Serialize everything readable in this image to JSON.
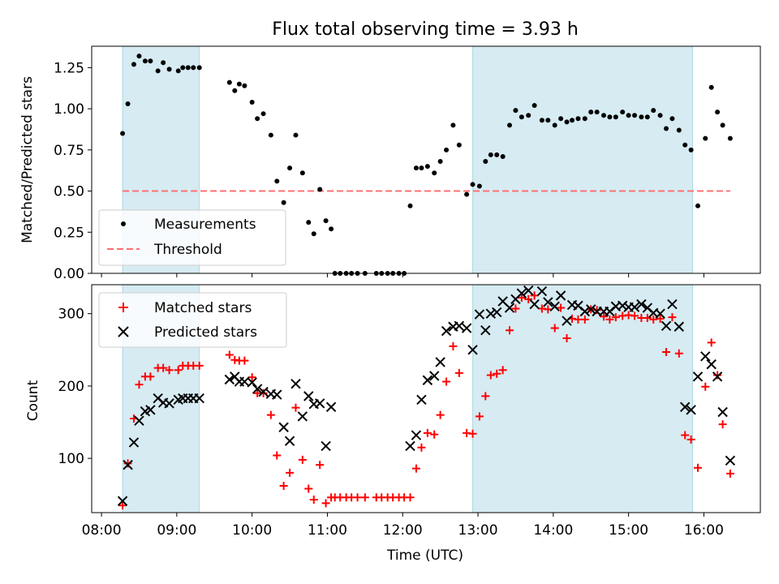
{
  "chart_data": {
    "type": "scatter",
    "title": "Flux total observing time = 3.93 h",
    "xlabel": "Time (UTC)",
    "x_units": "hours UTC",
    "xlim": [
      7.87,
      16.75
    ],
    "x_ticks": [
      8,
      9,
      10,
      11,
      12,
      13,
      14,
      15,
      16
    ],
    "x_tick_labels": [
      "08:00",
      "09:00",
      "10:00",
      "11:00",
      "12:00",
      "13:00",
      "14:00",
      "15:00",
      "16:00"
    ],
    "shaded_intervals": [
      [
        8.28,
        9.3
      ],
      [
        12.93,
        15.85
      ]
    ],
    "top": {
      "ylabel": "Matched/Predicted stars",
      "ylim": [
        0.0,
        1.38
      ],
      "y_ticks": [
        0.0,
        0.25,
        0.5,
        0.75,
        1.0,
        1.25
      ],
      "y_tick_labels": [
        "0.00",
        "0.25",
        "0.50",
        "0.75",
        "1.00",
        "1.25"
      ],
      "legend": [
        "Measurements",
        "Threshold"
      ],
      "threshold": {
        "name": "Threshold",
        "value": 0.5,
        "x_range": [
          8.28,
          16.35
        ],
        "color": "#ff7070"
      },
      "measurements": {
        "name": "Measurements",
        "x": [
          8.28,
          8.35,
          8.43,
          8.5,
          8.58,
          8.65,
          8.75,
          8.82,
          8.9,
          9.02,
          9.08,
          9.15,
          9.22,
          9.3,
          9.7,
          9.77,
          9.83,
          9.9,
          10.0,
          10.07,
          10.15,
          10.25,
          10.33,
          10.42,
          10.5,
          10.58,
          10.67,
          10.75,
          10.82,
          10.9,
          10.98,
          11.05,
          11.1,
          11.17,
          11.25,
          11.32,
          11.4,
          11.5,
          11.65,
          11.72,
          11.8,
          11.87,
          11.95,
          12.02,
          12.1,
          12.18,
          12.25,
          12.33,
          12.42,
          12.5,
          12.58,
          12.67,
          12.75,
          12.85,
          12.93,
          13.02,
          13.1,
          13.17,
          13.25,
          13.33,
          13.42,
          13.5,
          13.58,
          13.67,
          13.75,
          13.85,
          13.93,
          14.02,
          14.1,
          14.18,
          14.25,
          14.33,
          14.42,
          14.5,
          14.58,
          14.67,
          14.75,
          14.83,
          14.92,
          15.0,
          15.08,
          15.17,
          15.25,
          15.33,
          15.42,
          15.5,
          15.58,
          15.67,
          15.75,
          15.83,
          15.92,
          16.02,
          16.1,
          16.18,
          16.25,
          16.35
        ],
        "y": [
          0.85,
          1.03,
          1.27,
          1.32,
          1.29,
          1.29,
          1.23,
          1.28,
          1.24,
          1.23,
          1.25,
          1.25,
          1.25,
          1.25,
          1.16,
          1.11,
          1.15,
          1.14,
          1.04,
          0.94,
          0.97,
          0.84,
          0.56,
          0.43,
          0.64,
          0.84,
          0.61,
          0.31,
          0.24,
          0.51,
          0.32,
          0.27,
          0.0,
          0.0,
          0.0,
          0.0,
          0.0,
          0.0,
          0.0,
          0.0,
          0.0,
          0.0,
          0.0,
          0.0,
          0.41,
          0.64,
          0.64,
          0.65,
          0.61,
          0.68,
          0.75,
          0.9,
          0.78,
          0.48,
          0.54,
          0.53,
          0.68,
          0.72,
          0.72,
          0.71,
          0.9,
          0.99,
          0.95,
          0.96,
          1.02,
          0.93,
          0.93,
          0.9,
          0.94,
          0.92,
          0.93,
          0.94,
          0.94,
          0.98,
          0.98,
          0.96,
          0.95,
          0.95,
          0.98,
          0.96,
          0.96,
          0.95,
          0.95,
          0.99,
          0.96,
          0.88,
          0.94,
          0.87,
          0.78,
          0.75,
          0.41,
          0.82,
          1.13,
          0.98,
          0.9,
          0.82
        ],
        "color": "#000000"
      }
    },
    "bottom": {
      "ylabel": "Count",
      "ylim": [
        25,
        340
      ],
      "y_ticks": [
        100,
        200,
        300
      ],
      "y_tick_labels": [
        "100",
        "200",
        "300"
      ],
      "legend": [
        "Matched stars",
        "Predicted stars"
      ],
      "series": [
        {
          "name": "Matched stars",
          "marker": "+",
          "color": "#ff0000",
          "x": [
            8.28,
            8.35,
            8.43,
            8.5,
            8.58,
            8.65,
            8.75,
            8.82,
            8.9,
            9.02,
            9.08,
            9.15,
            9.22,
            9.3,
            9.7,
            9.77,
            9.83,
            9.9,
            10.0,
            10.07,
            10.15,
            10.25,
            10.33,
            10.42,
            10.5,
            10.58,
            10.67,
            10.75,
            10.82,
            10.9,
            10.98,
            11.05,
            11.1,
            11.17,
            11.25,
            11.32,
            11.4,
            11.5,
            11.65,
            11.72,
            11.8,
            11.87,
            11.95,
            12.02,
            12.1,
            12.18,
            12.25,
            12.33,
            12.42,
            12.5,
            12.58,
            12.67,
            12.75,
            12.85,
            12.93,
            13.02,
            13.1,
            13.17,
            13.25,
            13.33,
            13.42,
            13.5,
            13.58,
            13.67,
            13.75,
            13.85,
            13.93,
            14.02,
            14.1,
            14.18,
            14.25,
            14.33,
            14.42,
            14.5,
            14.58,
            14.67,
            14.75,
            14.83,
            14.92,
            15.0,
            15.08,
            15.17,
            15.25,
            15.33,
            15.42,
            15.5,
            15.58,
            15.67,
            15.75,
            15.83,
            15.92,
            16.02,
            16.1,
            16.18,
            16.25,
            16.35
          ],
          "y": [
            35,
            93,
            155,
            202,
            213,
            213,
            225,
            225,
            222,
            222,
            228,
            228,
            228,
            228,
            243,
            236,
            235,
            235,
            212,
            190,
            190,
            160,
            104,
            62,
            80,
            170,
            98,
            58,
            43,
            91,
            38,
            46,
            46,
            46,
            46,
            46,
            46,
            46,
            46,
            46,
            46,
            46,
            46,
            46,
            46,
            86,
            115,
            135,
            133,
            160,
            206,
            255,
            218,
            135,
            134,
            158,
            186,
            215,
            217,
            222,
            277,
            307,
            322,
            320,
            325,
            307,
            306,
            280,
            308,
            266,
            293,
            292,
            292,
            306,
            305,
            296,
            292,
            295,
            297,
            298,
            297,
            294,
            294,
            292,
            293,
            247,
            295,
            245,
            132,
            126,
            87,
            199,
            260,
            215,
            147,
            79
          ]
        },
        {
          "name": "Predicted stars",
          "marker": "x",
          "color": "#000000",
          "x": [
            8.28,
            8.35,
            8.43,
            8.5,
            8.58,
            8.65,
            8.75,
            8.82,
            8.9,
            9.02,
            9.08,
            9.15,
            9.22,
            9.3,
            9.7,
            9.77,
            9.83,
            9.9,
            10.0,
            10.07,
            10.15,
            10.25,
            10.33,
            10.42,
            10.5,
            10.58,
            10.67,
            10.75,
            10.82,
            10.9,
            10.98,
            11.05,
            12.1,
            12.18,
            12.25,
            12.33,
            12.42,
            12.5,
            12.58,
            12.67,
            12.75,
            12.85,
            12.93,
            13.02,
            13.1,
            13.17,
            13.25,
            13.33,
            13.42,
            13.5,
            13.58,
            13.67,
            13.75,
            13.85,
            13.93,
            14.02,
            14.1,
            14.18,
            14.25,
            14.33,
            14.42,
            14.5,
            14.58,
            14.67,
            14.75,
            14.83,
            14.92,
            15.0,
            15.08,
            15.17,
            15.25,
            15.33,
            15.42,
            15.5,
            15.58,
            15.67,
            15.75,
            15.83,
            15.92,
            16.02,
            16.1,
            16.18,
            16.25,
            16.35
          ],
          "y": [
            41,
            91,
            122,
            152,
            165,
            167,
            183,
            177,
            176,
            181,
            183,
            183,
            183,
            183,
            209,
            213,
            206,
            206,
            205,
            196,
            192,
            189,
            188,
            143,
            124,
            203,
            158,
            186,
            175,
            176,
            117,
            171,
            117,
            132,
            181,
            208,
            214,
            233,
            276,
            282,
            283,
            280,
            250,
            299,
            277,
            300,
            302,
            317,
            308,
            320,
            328,
            332,
            313,
            331,
            316,
            310,
            325,
            290,
            312,
            311,
            303,
            306,
            303,
            303,
            303,
            310,
            311,
            309,
            309,
            313,
            308,
            301,
            300,
            283,
            313,
            282,
            171,
            167,
            213,
            241,
            230,
            213,
            164,
            97
          ]
        }
      ]
    }
  }
}
